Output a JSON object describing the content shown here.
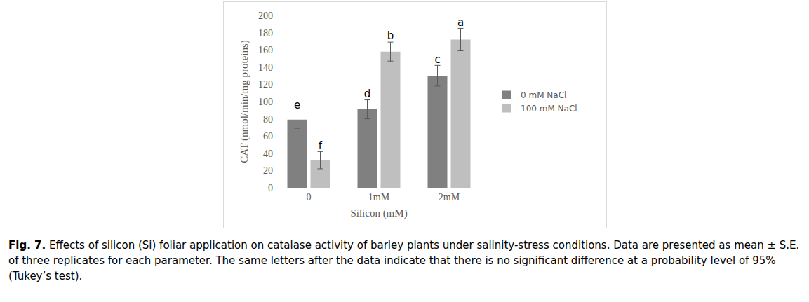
{
  "chart_data": {
    "type": "bar",
    "x_label": "Silicon (mM)",
    "y_label": "CAT (nmol/min/mg proteins)",
    "categories": [
      "0",
      "1mM",
      "2mM"
    ],
    "series": [
      {
        "name": "0 mM NaCl",
        "color": "#808080",
        "values": [
          79,
          91,
          130
        ],
        "errors": [
          10,
          11,
          12
        ],
        "letters": [
          "e",
          "d",
          "c"
        ]
      },
      {
        "name": "100 mM NaCl",
        "color": "#bfbfbf",
        "values": [
          32,
          158,
          172
        ],
        "errors": [
          10,
          11,
          13
        ],
        "letters": [
          "f",
          "b",
          "a"
        ]
      }
    ],
    "ylim": [
      0,
      200
    ],
    "yticks": [
      0,
      20,
      40,
      60,
      80,
      100,
      120,
      140,
      160,
      180,
      200
    ],
    "grid": false,
    "legend": "right"
  },
  "caption": {
    "label": "Fig. 7.",
    "text": "Effects of silicon (Si) foliar application on catalase activity of barley plants under salinity-stress conditions. Data are presented as mean ± S.E. of three replicates for each parameter. The same letters after the data indicate that there is no significant difference at a probability level of 95% (Tukey’s test)."
  }
}
